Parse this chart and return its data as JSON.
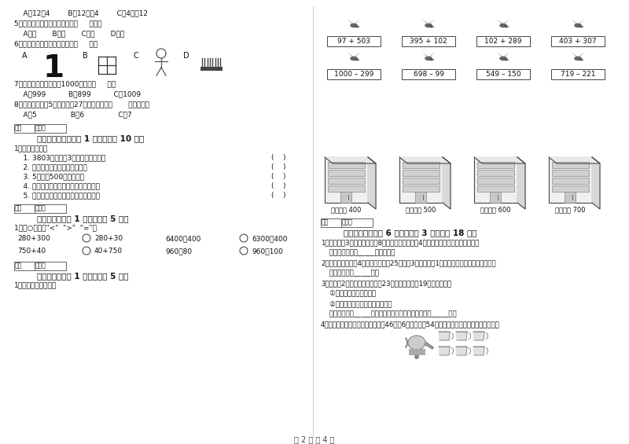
{
  "bg_color": "#ffffff",
  "footer_text": "第 2 页 共 4 页",
  "left_col": {
    "lines_top": [
      "    A、12除4        B、12除以4        C、4除以12",
      "5、一个四位数，它的最高位是（     ）位。",
      "    A、千       B、百       C、十       D、个",
      "6、下列图形中，轴对称图形是（     ）。"
    ],
    "lines_mid": [
      "7、下面几个数中最接近1000的数是（     ）。",
      "    A、999          B、899          C、1009",
      "8、多多餐厅，每5人一桌，有27人，至少需要（       ）张桌子。",
      "    A、5               B、6               C、7"
    ],
    "section5_header": "五、判断对与错（共 1 大题，共计 10 分）",
    "section5_items": [
      "1、我知道对错。",
      "    1. 3803中的两个3表示的意思相同。",
      "    2. 三位数不一定都比四位数小。",
      "    3. 5千米与500米一样长。",
      "    4. 读数和写数都是从最高位开始读写。",
      "    5. 早晨面向太阳，后面是西，左面北。"
    ],
    "section5_brackets": [
      false,
      true,
      true,
      true,
      true,
      true
    ],
    "section6_header": "六、比一比（共 1 大题，共计 5 分）",
    "section6_intro": "1、在○里填上\"<\"  \">\"  \"=\"。",
    "section7_header": "七、连一连（共 1 大题，共计 5 分）",
    "section7_intro": "1、估一估，连一连。"
  },
  "right_col": {
    "bird_problems_row1": [
      "97 + 503",
      "395 + 102",
      "102 + 289",
      "403 + 307"
    ],
    "bird_problems_row2": [
      "1000 – 299",
      "698 – 99",
      "549 – 150",
      "719 – 221"
    ],
    "building_labels": [
      "得数接近 400",
      "得数大约 500",
      "得数接近 600",
      "得数大约 700"
    ],
    "section8_header": "八、解决问题（共 6 小题，每题 3 分，共计 18 分）",
    "section8_items": [
      "1、学校买回3盒乒乓球，每盒8个，平均发给二年级4个组，每个组分得几个乒乓球？",
      "    答：每个组分得_____个乒乓球。",
      "2、小汽车每辆能坐4人，大客车能坐25人，有3辆小汽车和1辆大客车，问一共能坐多少人？",
      "    答：一共能坐_____人。",
      "3、二年级2班上体育课，老师让23名同学打篮球，19名同学跳绳。",
      "    ①全班共有多少个同学？",
      "    ②打篮球的同学比跳绳的多几人？",
      "    答：全班共有_____个同学，打篮球的同学比跳绳的多_____人。",
      "4、王阿姨买了一套茶具，茶壶每个46元，6个杯子一共54元，一个茶壶比一个杯子贵多少钱？"
    ]
  }
}
